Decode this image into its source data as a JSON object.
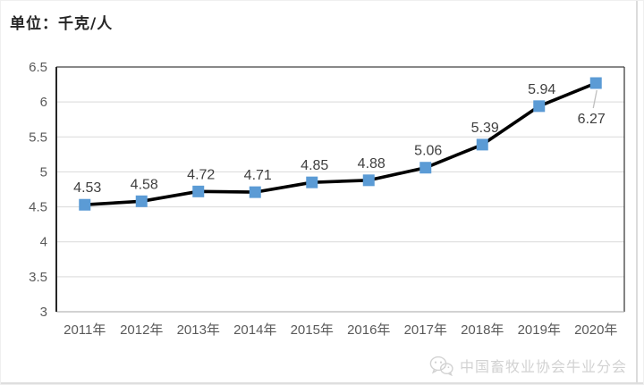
{
  "chart": {
    "unit_label": "单位：千克/人"
  },
  "chart_data": {
    "type": "line",
    "title": "单位：千克/人",
    "xlabel": "",
    "ylabel": "",
    "categories": [
      "2011年",
      "2012年",
      "2013年",
      "2014年",
      "2015年",
      "2016年",
      "2017年",
      "2018年",
      "2019年",
      "2020年"
    ],
    "values": [
      4.53,
      4.58,
      4.72,
      4.71,
      4.85,
      4.88,
      5.06,
      5.39,
      5.94,
      6.27
    ],
    "ylim": [
      3,
      6.5
    ],
    "ytick_step": 0.5,
    "grid": true,
    "legend": false,
    "marker": "square",
    "data_labels": true,
    "last_label_below_with_leader": true
  },
  "colors": {
    "line": "#000000",
    "marker": "#5B9BD5",
    "grid": "#D9D9D9",
    "axis_left": "#262626",
    "border": "#404040",
    "axis_bottom": "#A6A6A6",
    "tick_label": "#595959",
    "data_label": "#3F3F3F",
    "leader": "#BFBFBF",
    "watermark": "#D2D2D2"
  },
  "watermark": {
    "icon": "wechat-icon",
    "text": "中国畜牧业协会牛业分会"
  }
}
